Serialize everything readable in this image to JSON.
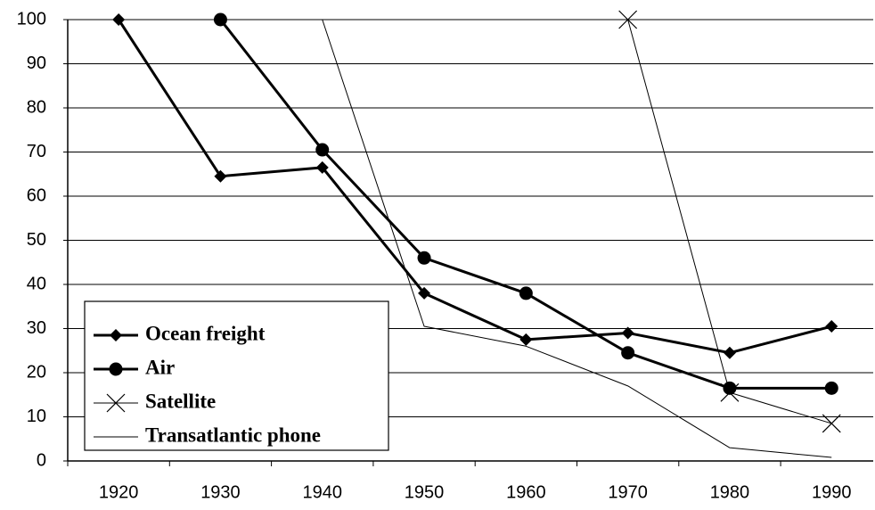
{
  "chart_data": {
    "type": "line",
    "categories": [
      "1920",
      "1930",
      "1940",
      "1950",
      "1960",
      "1970",
      "1980",
      "1990"
    ],
    "series": [
      {
        "name": "Ocean freight",
        "color": "#000000",
        "marker": "diamond",
        "width": 3,
        "values": [
          100,
          64.5,
          66.5,
          38,
          27.5,
          29,
          24.5,
          30.5
        ]
      },
      {
        "name": "Air",
        "color": "#000000",
        "marker": "circle",
        "width": 3,
        "values": [
          null,
          100,
          70.5,
          46,
          38,
          24.5,
          16.5,
          16.5
        ]
      },
      {
        "name": "Satellite",
        "color": "#000000",
        "marker": "x",
        "width": 1,
        "values": [
          null,
          null,
          null,
          null,
          null,
          100,
          15.5,
          8.5
        ]
      },
      {
        "name": "Transatlantic phone",
        "color": "#000000",
        "marker": "none",
        "width": 1,
        "values": [
          null,
          null,
          100,
          30.5,
          26,
          17,
          3,
          0.8
        ]
      }
    ],
    "ylim": [
      0,
      100
    ],
    "yticks": [
      0,
      10,
      20,
      30,
      40,
      50,
      60,
      70,
      80,
      90,
      100
    ],
    "grid": true,
    "legend": "bottom-left"
  }
}
